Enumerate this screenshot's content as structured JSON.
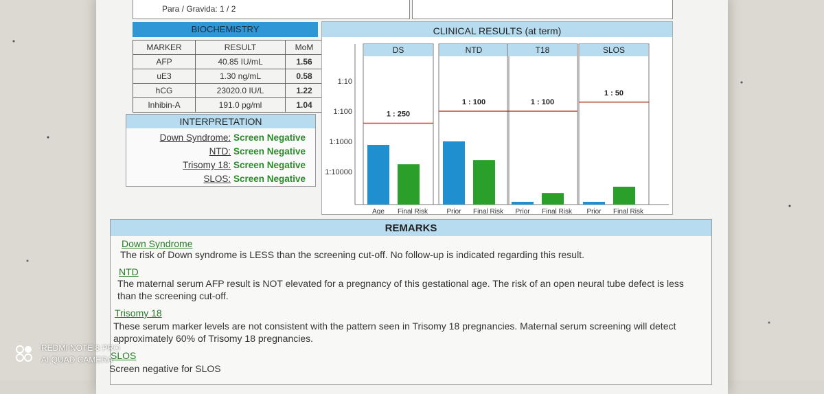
{
  "header": {
    "para_gravida_label": "Para / Gravida:",
    "para_gravida_value": "1 / 2"
  },
  "biochemistry": {
    "title": "BIOCHEMISTRY",
    "columns": [
      "MARKER",
      "RESULT",
      "MoM"
    ],
    "rows": [
      {
        "marker": "AFP",
        "result": "40.85 IU/mL",
        "mom": "1.56"
      },
      {
        "marker": "uE3",
        "result": "1.30 ng/mL",
        "mom": "0.58"
      },
      {
        "marker": "hCG",
        "result": "23020.0 IU/L",
        "mom": "1.22"
      },
      {
        "marker": "Inhibin-A",
        "result": "191.0 pg/ml",
        "mom": "1.04"
      }
    ]
  },
  "interpretation": {
    "title": "INTERPRETATION",
    "rows": [
      {
        "label": "Down Syndrome:",
        "value": "Screen Negative"
      },
      {
        "label": "NTD:",
        "value": "Screen Negative"
      },
      {
        "label": "Trisomy 18:",
        "value": "Screen Negative"
      },
      {
        "label": "SLOS:",
        "value": "Screen Negative"
      }
    ]
  },
  "chart_data": {
    "type": "bar",
    "title": "CLINICAL RESULTS (at term)",
    "yscale": "log-reciprocal",
    "yticks": [
      "1:10",
      "1:100",
      "1:1000",
      "1:10000"
    ],
    "panels": [
      {
        "name": "DS",
        "cutoff_label": "1 : 250",
        "cutoff": 250,
        "bars": [
          {
            "label": "Age",
            "risk_label": "1:1300",
            "risk": 1300,
            "color": "#1f8fd0"
          },
          {
            "label": "Final Risk",
            "risk_label": "1:5690",
            "risk": 5690,
            "color": "#2aa02a"
          }
        ]
      },
      {
        "name": "NTD",
        "cutoff_label": "1 : 100",
        "cutoff": 100,
        "bars": [
          {
            "label": "Prior",
            "risk_label": "1:1000",
            "risk": 1000,
            "color": "#1f8fd0"
          },
          {
            "label": "Final Risk",
            "risk_label": "1:4140",
            "risk": 4140,
            "color": "#2aa02a"
          }
        ]
      },
      {
        "name": "T18",
        "cutoff_label": "1 : 100",
        "cutoff": 100,
        "bars": [
          {
            "label": "Prior",
            "risk_label": "1:130001",
            "risk": 130001,
            "color": "#1f8fd0"
          },
          {
            "label": "Final Risk",
            "risk_label": ":51100",
            "risk": 51100,
            "color": "#2aa02a"
          }
        ]
      },
      {
        "name": "SLOS",
        "cutoff_label": "1 : 50",
        "cutoff": 50,
        "bars": [
          {
            "label": "Prior",
            "risk_label": "1:200001",
            "risk": 200001,
            "color": "#1f8fd0"
          },
          {
            "label": "Final Risk",
            "risk_label": ":31600",
            "risk": 31600,
            "color": "#2aa02a"
          }
        ]
      }
    ]
  },
  "remarks": {
    "title": "REMARKS",
    "sections": [
      {
        "heading": "Down Syndrome",
        "text": "The risk of Down syndrome is LESS than the screening cut-off. No follow-up is indicated regarding this result."
      },
      {
        "heading": "NTD",
        "text": "The maternal serum AFP result is NOT elevated for a pregnancy of this gestational age.  The risk of an open neural tube defect is less than the screening cut-off."
      },
      {
        "heading": "Trisomy 18",
        "text": "These serum marker levels are not consistent with the pattern seen in Trisomy 18 pregnancies. Maternal serum screening will detect approximately 60% of Trisomy 18 pregnancies."
      },
      {
        "heading": "SLOS",
        "text": "Screen negative for SLOS"
      }
    ]
  },
  "watermark": {
    "line1": "REDMI NOTE 8 PRO",
    "line2": "AI QUAD CAMERA"
  }
}
